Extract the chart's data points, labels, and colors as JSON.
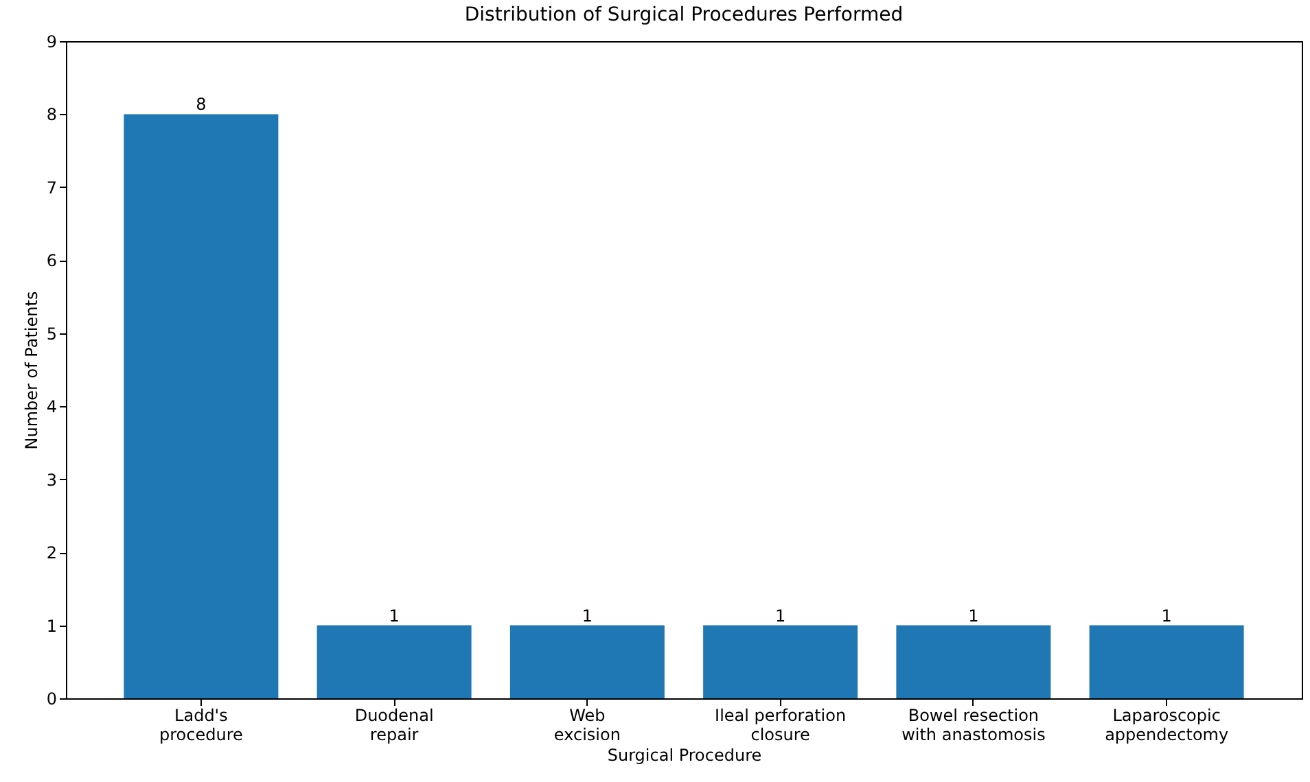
{
  "chart_data": {
    "type": "bar",
    "title": "Distribution of Surgical Procedures Performed",
    "xlabel": "Surgical Procedure",
    "ylabel": "Number of Patients",
    "categories": [
      "Ladd's\nprocedure",
      "Duodenal\nrepair",
      "Web\nexcision",
      "Ileal perforation\nclosure",
      "Bowel resection\nwith anastomosis",
      "Laparoscopic\nappendectomy"
    ],
    "values": [
      8,
      1,
      1,
      1,
      1,
      1
    ],
    "color": "#1f77b4",
    "ylim": [
      0,
      9
    ],
    "yticks": [
      0,
      1,
      2,
      3,
      4,
      5,
      6,
      7,
      8,
      9
    ],
    "grid": false,
    "data_labels": true
  }
}
